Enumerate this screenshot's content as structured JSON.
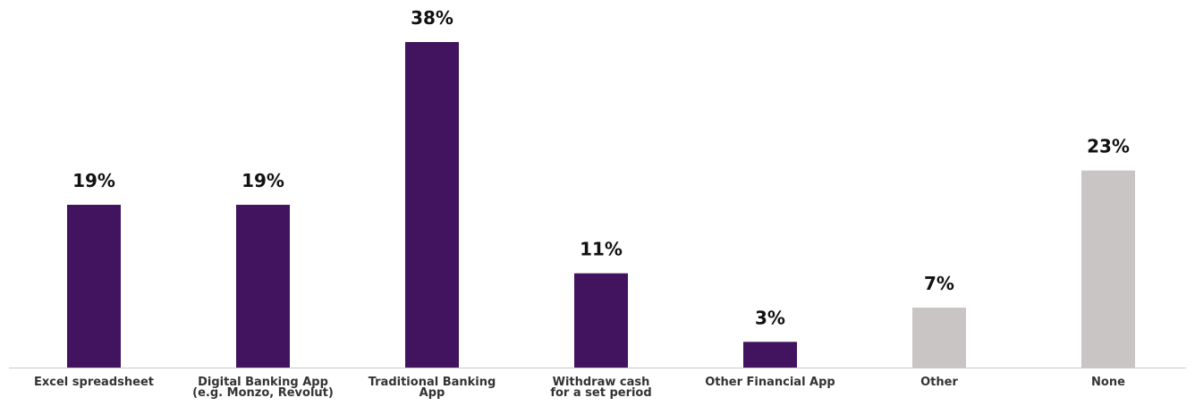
{
  "chart_data": {
    "type": "bar",
    "categories": [
      [
        "Excel spreadsheet"
      ],
      [
        "Digital Banking App",
        "(e.g. Monzo, Revolut)"
      ],
      [
        "Traditional Banking",
        "App"
      ],
      [
        "Withdraw cash",
        "for a set period"
      ],
      [
        "Other Financial App"
      ],
      [
        "Other"
      ],
      [
        "None"
      ]
    ],
    "values": [
      19,
      19,
      38,
      11,
      3,
      7,
      23
    ],
    "value_labels": [
      "19%",
      "19%",
      "38%",
      "11%",
      "3%",
      "7%",
      "23%"
    ],
    "bar_colors": [
      "#42145f",
      "#42145f",
      "#42145f",
      "#42145f",
      "#42145f",
      "#c9c5c5",
      "#c9c5c5"
    ],
    "baseline_color": "#c9c9c9",
    "ylim": [
      0,
      38
    ],
    "grid": false,
    "legend": "none"
  }
}
